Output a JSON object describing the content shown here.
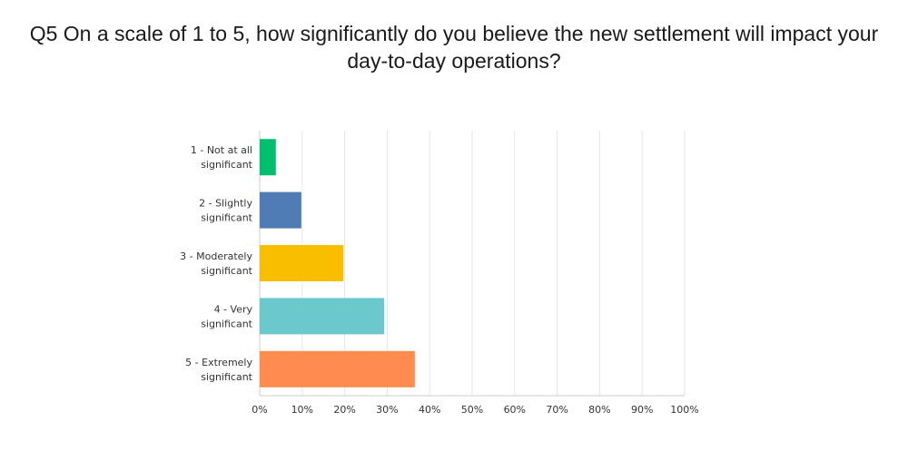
{
  "title_line1": "Q5 On a scale of 1 to 5, how significantly do you believe the new settlement will impact your",
  "title_line2": "day-to-day operations?",
  "chart_data": {
    "type": "bar",
    "orientation": "horizontal",
    "categories": [
      [
        "1 - Not at all",
        "significant"
      ],
      [
        "2 - Slightly",
        "significant"
      ],
      [
        "3 - Moderately",
        "significant"
      ],
      [
        "4 - Very",
        "significant"
      ],
      [
        "5 - Extremely",
        "significant"
      ]
    ],
    "values": [
      3.8,
      9.8,
      19.7,
      29.3,
      36.5
    ],
    "unit": "%",
    "colors": [
      "#00bf6f",
      "#507cb6",
      "#f9be00",
      "#6bc8cd",
      "#ff8b4f"
    ],
    "xlim": [
      0,
      100
    ],
    "xticks": [
      "0%",
      "10%",
      "20%",
      "30%",
      "40%",
      "50%",
      "60%",
      "70%",
      "80%",
      "90%",
      "100%"
    ],
    "grid": true,
    "legend": "none"
  }
}
